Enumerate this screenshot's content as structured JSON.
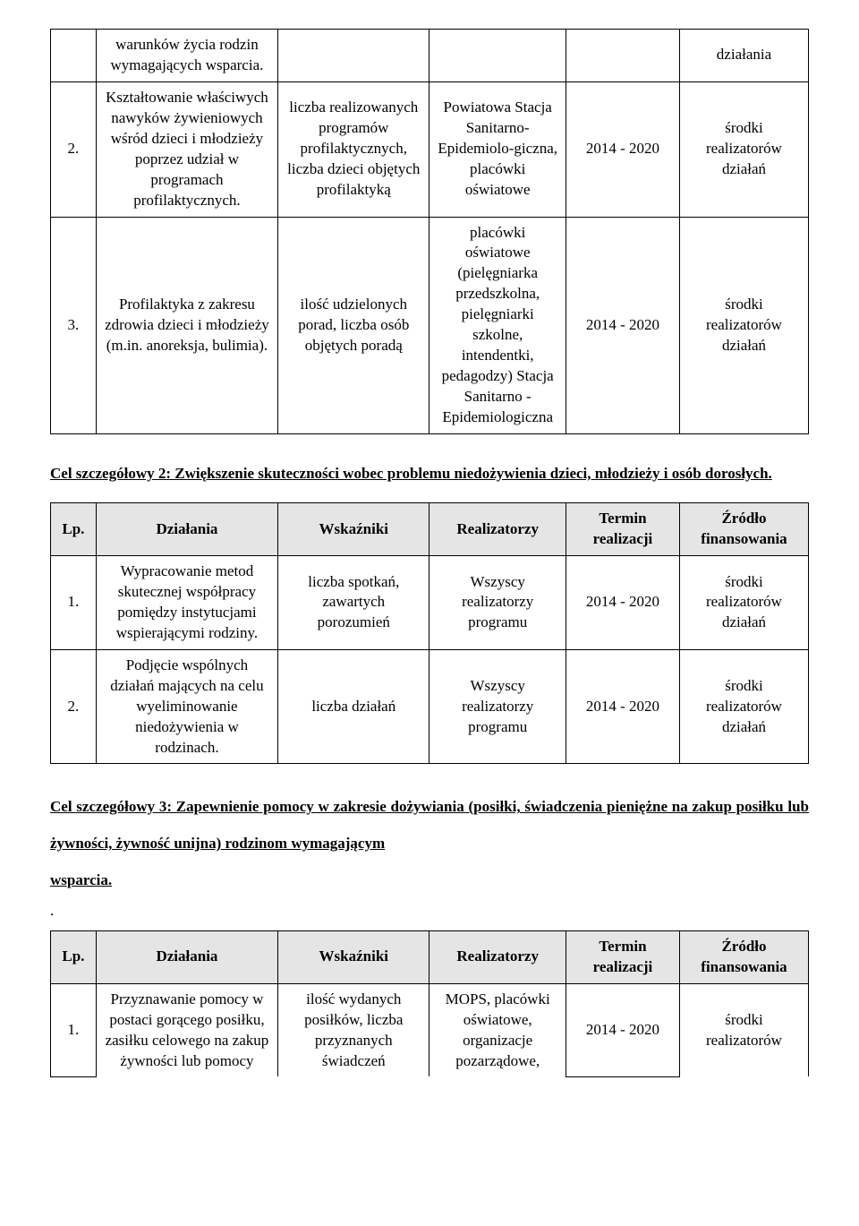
{
  "table1": {
    "rows": [
      {
        "lp": "",
        "dzialania": "warunków życia rodzin wymagających wsparcia.",
        "wskazniki": "",
        "realizatorzy": "",
        "termin": "",
        "zrodlo": "działania"
      },
      {
        "lp": "2.",
        "dzialania": "Kształtowanie właściwych nawyków żywieniowych wśród dzieci i młodzieży poprzez udział w programach profilaktycznych.",
        "wskazniki": "liczba realizowanych programów profilaktycznych, liczba dzieci objętych profilaktyką",
        "realizatorzy": "Powiatowa Stacja Sanitarno-Epidemiolo-giczna, placówki oświatowe",
        "termin": "2014 - 2020",
        "zrodlo": "środki realizatorów działań"
      },
      {
        "lp": "3.",
        "dzialania": "Profilaktyka z zakresu zdrowia dzieci i młodzieży (m.in. anoreksja, bulimia).",
        "wskazniki": "ilość udzielonych porad, liczba osób objętych poradą",
        "realizatorzy": "placówki oświatowe (pielęgniarka przedszkolna, pielęgniarki szkolne, intendentki, pedagodzy) Stacja Sanitarno - Epidemiologiczna",
        "termin": "2014 - 2020",
        "zrodlo": "środki realizatorów działań"
      }
    ]
  },
  "section2": {
    "title": "Cel szczegółowy 2: Zwiększenie skuteczności wobec problemu niedożywienia dzieci, młodzieży i osób dorosłych."
  },
  "table2": {
    "headers": {
      "lp": "Lp.",
      "dzialania": "Działania",
      "wskazniki": "Wskaźniki",
      "realizatorzy": "Realizatorzy",
      "termin": "Termin realizacji",
      "zrodlo": "Źródło finansowania"
    },
    "rows": [
      {
        "lp": "1.",
        "dzialania": "Wypracowanie metod skutecznej współpracy pomiędzy instytucjami wspierającymi rodziny.",
        "wskazniki": "liczba spotkań, zawartych porozumień",
        "realizatorzy": "Wszyscy realizatorzy programu",
        "termin": "2014 - 2020",
        "zrodlo": "środki realizatorów działań"
      },
      {
        "lp": "2.",
        "dzialania": "Podjęcie wspólnych działań mających na celu wyeliminowanie niedożywienia w rodzinach.",
        "wskazniki": "liczba działań",
        "realizatorzy": "Wszyscy realizatorzy programu",
        "termin": "2014 - 2020",
        "zrodlo": "środki realizatorów działań"
      }
    ]
  },
  "section3": {
    "title_part1": "Cel szczegółowy 3: Zapewnienie pomocy w zakresie dożywiania (posiłki, świadczenia pieniężne na zakup posiłku lub żywności, żywność unijna) rodzinom wymagającym",
    "title_part2": "wsparcia.",
    "dot": "."
  },
  "table3": {
    "headers": {
      "lp": "Lp.",
      "dzialania": "Działania",
      "wskazniki": "Wskaźniki",
      "realizatorzy": "Realizatorzy",
      "termin": "Termin realizacji",
      "zrodlo": "Źródło finansowania"
    },
    "rows": [
      {
        "lp": "1.",
        "dzialania": "Przyznawanie pomocy w postaci gorącego posiłku, zasiłku celowego na zakup żywności lub pomocy",
        "wskazniki": "ilość wydanych posiłków, liczba przyznanych świadczeń",
        "realizatorzy": "MOPS, placówki oświatowe, organizacje pozarządowe,",
        "termin": "2014 - 2020",
        "zrodlo": "środki realizatorów"
      }
    ]
  }
}
